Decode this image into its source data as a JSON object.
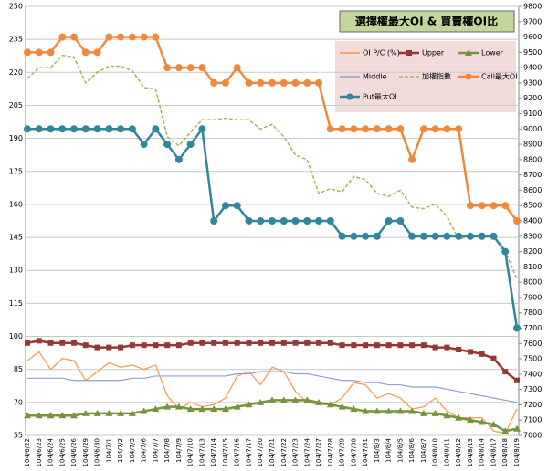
{
  "chart_data": {
    "type": "line",
    "title": "選擇權最大OI & 買賣權OI比",
    "x": [
      "104/6/22",
      "104/6/23",
      "104/6/24",
      "104/6/25",
      "104/6/26",
      "104/6/29",
      "104/6/30",
      "104/7/1",
      "104/7/2",
      "104/7/3",
      "104/7/6",
      "104/7/7",
      "104/7/8",
      "104/7/9",
      "104/7/10",
      "104/7/13",
      "104/7/14",
      "104/7/15",
      "104/7/16",
      "104/7/17",
      "104/7/20",
      "104/7/21",
      "104/7/22",
      "104/7/23",
      "104/7/24",
      "104/7/27",
      "104/7/28",
      "104/7/29",
      "104/7/30",
      "104/7/31",
      "104/8/3",
      "104/8/4",
      "104/8/5",
      "104/8/6",
      "104/8/7",
      "104/8/10",
      "104/8/11",
      "104/8/12",
      "104/8/13",
      "104/8/14",
      "104/8/17",
      "104/8/18",
      "104/8/19"
    ],
    "series": [
      {
        "name": "OI P/C (%)",
        "color": "#f79646",
        "marker": "none",
        "axis": "y",
        "values": [
          89,
          93,
          85,
          90,
          89,
          80,
          84,
          88,
          86,
          87,
          85,
          87,
          73,
          67,
          70,
          68,
          69,
          72,
          82,
          84,
          78,
          86,
          84,
          75,
          70,
          69,
          69,
          72,
          79,
          78,
          72,
          74,
          72,
          67,
          68,
          72,
          66,
          63,
          63,
          63,
          57,
          56,
          67
        ]
      },
      {
        "name": "Upper",
        "color": "#953735",
        "marker": "square",
        "axis": "y",
        "values": [
          97,
          98,
          97,
          97,
          97,
          96,
          95,
          95,
          95,
          96,
          96,
          96,
          96,
          96,
          97,
          97,
          97,
          97,
          97,
          97,
          97,
          97,
          97,
          97,
          97,
          97,
          97,
          96,
          96,
          96,
          96,
          96,
          96,
          96,
          96,
          95,
          95,
          94,
          93,
          92,
          90,
          84,
          80
        ]
      },
      {
        "name": "Lower",
        "color": "#77933c",
        "marker": "triangle",
        "axis": "y",
        "values": [
          64,
          64,
          64,
          64,
          64,
          65,
          65,
          65,
          65,
          65,
          66,
          67,
          68,
          68,
          67,
          67,
          67,
          67,
          68,
          69,
          70,
          71,
          71,
          71,
          71,
          70,
          69,
          68,
          67,
          66,
          66,
          66,
          66,
          66,
          65,
          65,
          64,
          63,
          62,
          61,
          60,
          57,
          58
        ]
      },
      {
        "name": "Middle",
        "color": "#8ea2d6",
        "marker": "none",
        "axis": "y",
        "values": [
          81,
          81,
          81,
          81,
          80,
          80,
          80,
          80,
          80,
          81,
          81,
          82,
          82,
          82,
          82,
          82,
          82,
          82,
          83,
          83,
          84,
          84,
          84,
          83,
          83,
          82,
          81,
          80,
          80,
          79,
          79,
          78,
          78,
          77,
          77,
          77,
          76,
          75,
          74,
          73,
          72,
          71,
          70
        ]
      },
      {
        "name": "加權指數",
        "color": "#9bbb59",
        "marker": "none",
        "dashed": true,
        "axis": "y2",
        "values": [
          9330,
          9400,
          9400,
          9480,
          9470,
          9300,
          9370,
          9410,
          9410,
          9380,
          9270,
          9260,
          8950,
          8890,
          8980,
          9060,
          9060,
          9070,
          9060,
          9060,
          9000,
          9030,
          8950,
          8830,
          8800,
          8580,
          8610,
          8590,
          8690,
          8670,
          8580,
          8560,
          8600,
          8490,
          8480,
          8510,
          8430,
          8280,
          8300,
          8310,
          8290,
          8200,
          8020
        ]
      },
      {
        "name": "Call最大OI",
        "color": "#f0883c",
        "marker": "circle",
        "axis": "y2",
        "values": [
          9500,
          9500,
          9500,
          9600,
          9600,
          9500,
          9500,
          9600,
          9600,
          9600,
          9600,
          9600,
          9400,
          9400,
          9400,
          9400,
          9300,
          9300,
          9400,
          9300,
          9300,
          9300,
          9300,
          9300,
          9300,
          9300,
          9000,
          9000,
          9000,
          9000,
          9000,
          9000,
          9000,
          8800,
          9000,
          9000,
          9000,
          9000,
          8500,
          8500,
          8500,
          8500,
          8400
        ]
      },
      {
        "name": "Put最大OI",
        "color": "#31859c",
        "marker": "circle",
        "axis": "y2",
        "values": [
          9000,
          9000,
          9000,
          9000,
          9000,
          9000,
          9000,
          9000,
          9000,
          9000,
          8900,
          9000,
          8900,
          8800,
          8900,
          9000,
          8400,
          8500,
          8500,
          8400,
          8400,
          8400,
          8400,
          8400,
          8400,
          8400,
          8400,
          8300,
          8300,
          8300,
          8300,
          8400,
          8400,
          8300,
          8300,
          8300,
          8300,
          8300,
          8300,
          8300,
          8300,
          8200,
          7700
        ]
      }
    ],
    "ylim": [
      55,
      250
    ],
    "yticks": [
      55,
      70,
      85,
      100,
      115,
      130,
      145,
      160,
      175,
      190,
      205,
      220,
      235,
      250
    ],
    "y2lim": [
      7000,
      9800
    ],
    "y2ticks": [
      7000,
      7100,
      7200,
      7300,
      7400,
      7500,
      7600,
      7700,
      7800,
      7900,
      8000,
      8100,
      8200,
      8300,
      8400,
      8500,
      8600,
      8700,
      8800,
      8900,
      9000,
      9100,
      9200,
      9300,
      9400,
      9500,
      9600,
      9700,
      9800
    ],
    "grid": true,
    "legend_position": "upper right"
  }
}
